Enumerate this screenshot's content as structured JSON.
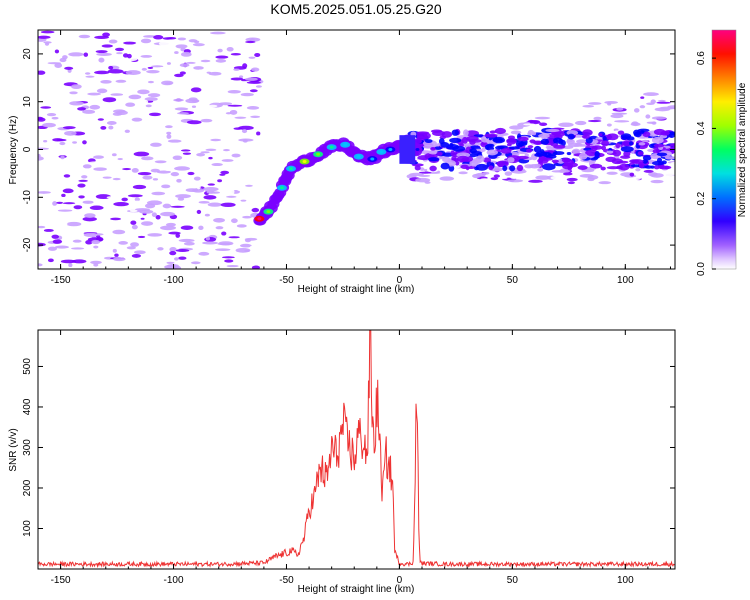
{
  "title": "KOM5.2025.051.05.25.G20",
  "chart_data": [
    {
      "type": "heatmap",
      "xlabel": "Height of straight line (km)",
      "ylabel": "Frequency (Hz)",
      "xlim": [
        -160,
        122
      ],
      "ylim": [
        -25,
        25
      ],
      "xticks": [
        -150,
        -100,
        -50,
        0,
        50,
        100
      ],
      "yticks": [
        -20,
        -10,
        0,
        10,
        20
      ],
      "colorbar": {
        "label": "Normalized spectral amplitude",
        "range": [
          0,
          0.68
        ],
        "ticks": [
          0.0,
          0.2,
          0.4,
          0.6
        ],
        "tick_labels": [
          "0.0",
          "0.2",
          "0.4",
          "0.6"
        ],
        "colors": [
          "#ffffff",
          "#c8a0ff",
          "#7a00ff",
          "#0000ff",
          "#00c8ff",
          "#00ff80",
          "#80ff00",
          "#ffff00",
          "#ff8000",
          "#ff0000",
          "#ff0080"
        ]
      },
      "ridge": [
        {
          "x": -62,
          "y": -14.5,
          "v": 0.6
        },
        {
          "x": -58,
          "y": -13,
          "v": 0.35
        },
        {
          "x": -52,
          "y": -8,
          "v": 0.3
        },
        {
          "x": -48,
          "y": -4,
          "v": 0.3
        },
        {
          "x": -42,
          "y": -2.5,
          "v": 0.4
        },
        {
          "x": -36,
          "y": -1,
          "v": 0.35
        },
        {
          "x": -30,
          "y": 0.5,
          "v": 0.3
        },
        {
          "x": -24,
          "y": 1,
          "v": 0.25
        },
        {
          "x": -18,
          "y": -1.5,
          "v": 0.25
        },
        {
          "x": -12,
          "y": -2,
          "v": 0.2
        },
        {
          "x": -8,
          "y": -0.5,
          "v": 0.25
        },
        {
          "x": -4,
          "y": 0,
          "v": 0.2
        },
        {
          "x": 3,
          "y": 0.8,
          "v": 0.2
        },
        {
          "x": 8,
          "y": 0,
          "v": 0.15
        }
      ]
    },
    {
      "type": "line",
      "xlabel": "Height of straight line (km)",
      "ylabel": "SNR (v/v)",
      "xlim": [
        -160,
        122
      ],
      "ylim": [
        0,
        590
      ],
      "xticks": [
        -150,
        -100,
        -50,
        0,
        50,
        100
      ],
      "yticks": [
        100,
        200,
        300,
        400,
        500
      ],
      "color": "#ee3333",
      "series": [
        {
          "x": [
            -160,
            -120,
            -80,
            -60,
            -55,
            -50,
            -48,
            -45,
            -42,
            -40,
            -38,
            -35,
            -32,
            -30,
            -28,
            -26,
            -25,
            -24,
            -22,
            -20,
            -18,
            -17,
            -16,
            -15,
            -14,
            -13,
            -12,
            -11,
            -10,
            -9,
            -8,
            -7,
            -6,
            -5,
            -4,
            -3,
            -2,
            0,
            3,
            5,
            6,
            7,
            7.5,
            8,
            8.5,
            9,
            10,
            20,
            40,
            60,
            80,
            100,
            122
          ],
          "y": [
            12,
            12,
            12,
            15,
            30,
            40,
            45,
            35,
            80,
            150,
            170,
            250,
            220,
            300,
            280,
            320,
            360,
            330,
            300,
            270,
            340,
            310,
            330,
            290,
            300,
            590,
            360,
            300,
            420,
            370,
            200,
            210,
            280,
            260,
            240,
            210,
            40,
            15,
            12,
            13,
            14,
            200,
            470,
            350,
            120,
            20,
            14,
            12,
            12,
            12,
            12,
            12,
            12
          ]
        }
      ]
    }
  ]
}
